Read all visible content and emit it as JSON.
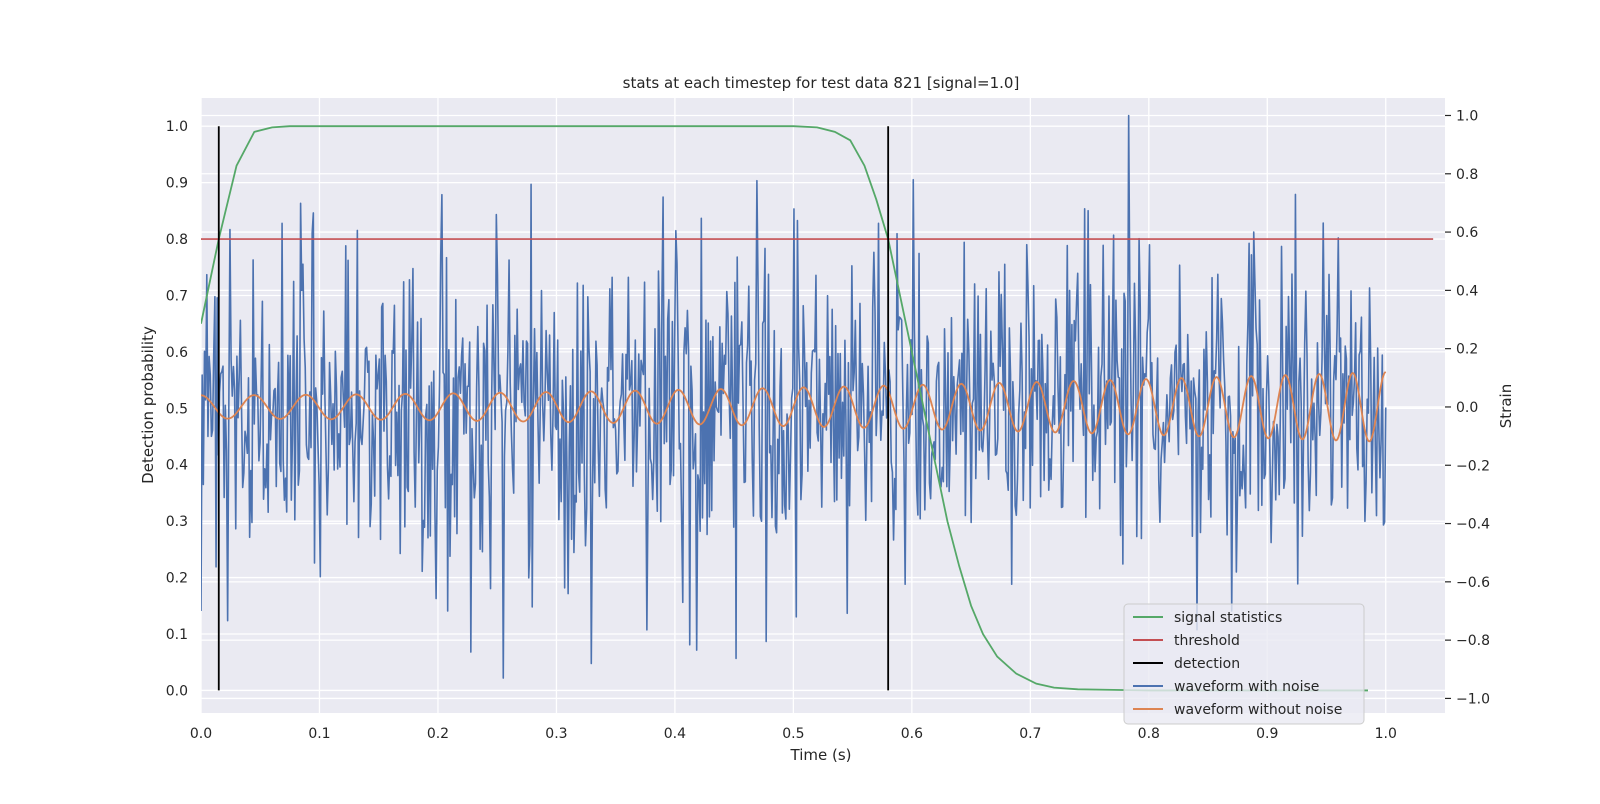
{
  "chart_data": {
    "type": "line",
    "title": "stats at each timestep for test data 821 [signal=1.0]",
    "xlabel": "Time (s)",
    "ylabel_left": "Detection probability",
    "ylabel_right": "Strain",
    "xlim": [
      0.0,
      1.05
    ],
    "ylim_left": [
      -0.04,
      1.05
    ],
    "ylim_right": [
      -1.05,
      1.06
    ],
    "x_ticks": [
      0.0,
      0.1,
      0.2,
      0.3,
      0.4,
      0.5,
      0.6,
      0.7,
      0.8,
      0.9,
      1.0
    ],
    "x_tick_labels": [
      "0.0",
      "0.1",
      "0.2",
      "0.3",
      "0.4",
      "0.5",
      "0.6",
      "0.7",
      "0.8",
      "0.9",
      "1.0"
    ],
    "y_left_ticks": [
      0.0,
      0.1,
      0.2,
      0.3,
      0.4,
      0.5,
      0.6,
      0.7,
      0.8,
      0.9,
      1.0
    ],
    "y_left_tick_labels": [
      "0.0",
      "0.1",
      "0.2",
      "0.3",
      "0.4",
      "0.5",
      "0.6",
      "0.7",
      "0.8",
      "0.9",
      "1.0"
    ],
    "y_right_ticks": [
      1.0,
      0.8,
      0.6,
      0.4,
      0.2,
      0.0,
      -0.2,
      -0.4,
      -0.6,
      -0.8,
      -1.0
    ],
    "y_right_tick_labels": [
      "1.0",
      "0.8",
      "0.6",
      "0.4",
      "0.2",
      "0.0",
      "−0.2",
      "−0.4",
      "−0.6",
      "−0.8",
      "−1.0"
    ],
    "grid": true,
    "legend_position": "lower-right",
    "colors": {
      "background": "#eaeaf2",
      "grid": "#ffffff",
      "signal_statistics": "#55a868",
      "threshold": "#c44e52",
      "detection": "#000000",
      "waveform_noise": "#4c72b0",
      "waveform_clean": "#dd8452"
    },
    "signal_statistics": {
      "name": "signal statistics",
      "x": [
        0.0,
        0.015,
        0.03,
        0.045,
        0.06,
        0.075,
        0.1,
        0.2,
        0.3,
        0.4,
        0.5,
        0.52,
        0.535,
        0.548,
        0.56,
        0.57,
        0.58,
        0.59,
        0.6,
        0.61,
        0.62,
        0.63,
        0.64,
        0.65,
        0.66,
        0.672,
        0.688,
        0.705,
        0.72,
        0.74,
        0.77,
        0.8,
        0.9,
        0.985
      ],
      "y": [
        0.65,
        0.8,
        0.93,
        0.99,
        0.998,
        1.0,
        1.0,
        1.0,
        1.0,
        1.0,
        1.0,
        0.998,
        0.99,
        0.975,
        0.93,
        0.87,
        0.8,
        0.7,
        0.6,
        0.5,
        0.4,
        0.3,
        0.22,
        0.15,
        0.1,
        0.06,
        0.03,
        0.012,
        0.005,
        0.002,
        0.001,
        0.0,
        0.0,
        0.0
      ],
      "axis": "left"
    },
    "threshold": {
      "name": "threshold",
      "y": 0.8,
      "x_start": 0.0,
      "x_end": 1.04,
      "axis": "left"
    },
    "detection": {
      "name": "detection",
      "x": [
        0.015,
        0.58
      ],
      "y_range": [
        0.0,
        1.0
      ],
      "axis": "left"
    },
    "waveform_with_noise": {
      "name": "waveform with noise",
      "x_start": 0.0,
      "x_end": 1.0,
      "n_points": 1024,
      "y_range": [
        -0.93,
        1.0
      ],
      "y_std_approx": 0.28,
      "peaks": [
        {
          "x": 0.068,
          "y": 0.63
        },
        {
          "x": 0.249,
          "y": 0.66
        },
        {
          "x": 0.39,
          "y": 0.72
        },
        {
          "x": 0.572,
          "y": 0.63
        },
        {
          "x": 0.746,
          "y": 0.68
        },
        {
          "x": 0.783,
          "y": 1.0
        },
        {
          "x": 0.96,
          "y": 0.58
        }
      ],
      "troughs": [
        {
          "x": 0.0,
          "y": -0.7
        },
        {
          "x": 0.208,
          "y": -0.7
        },
        {
          "x": 0.255,
          "y": -0.93
        },
        {
          "x": 0.502,
          "y": -0.72
        },
        {
          "x": 0.87,
          "y": -0.7
        }
      ],
      "axis": "right"
    },
    "waveform_without_noise": {
      "name": "waveform without noise",
      "x_start": 0.0,
      "x_end": 1.0,
      "amplitude_start": 0.04,
      "amplitude_end": 0.12,
      "cycles": 29,
      "frequency_start_hz": 22,
      "frequency_end_hz": 36,
      "axis": "right"
    },
    "legend": [
      "signal statistics",
      "threshold",
      "detection",
      "waveform with noise",
      "waveform without noise"
    ]
  }
}
